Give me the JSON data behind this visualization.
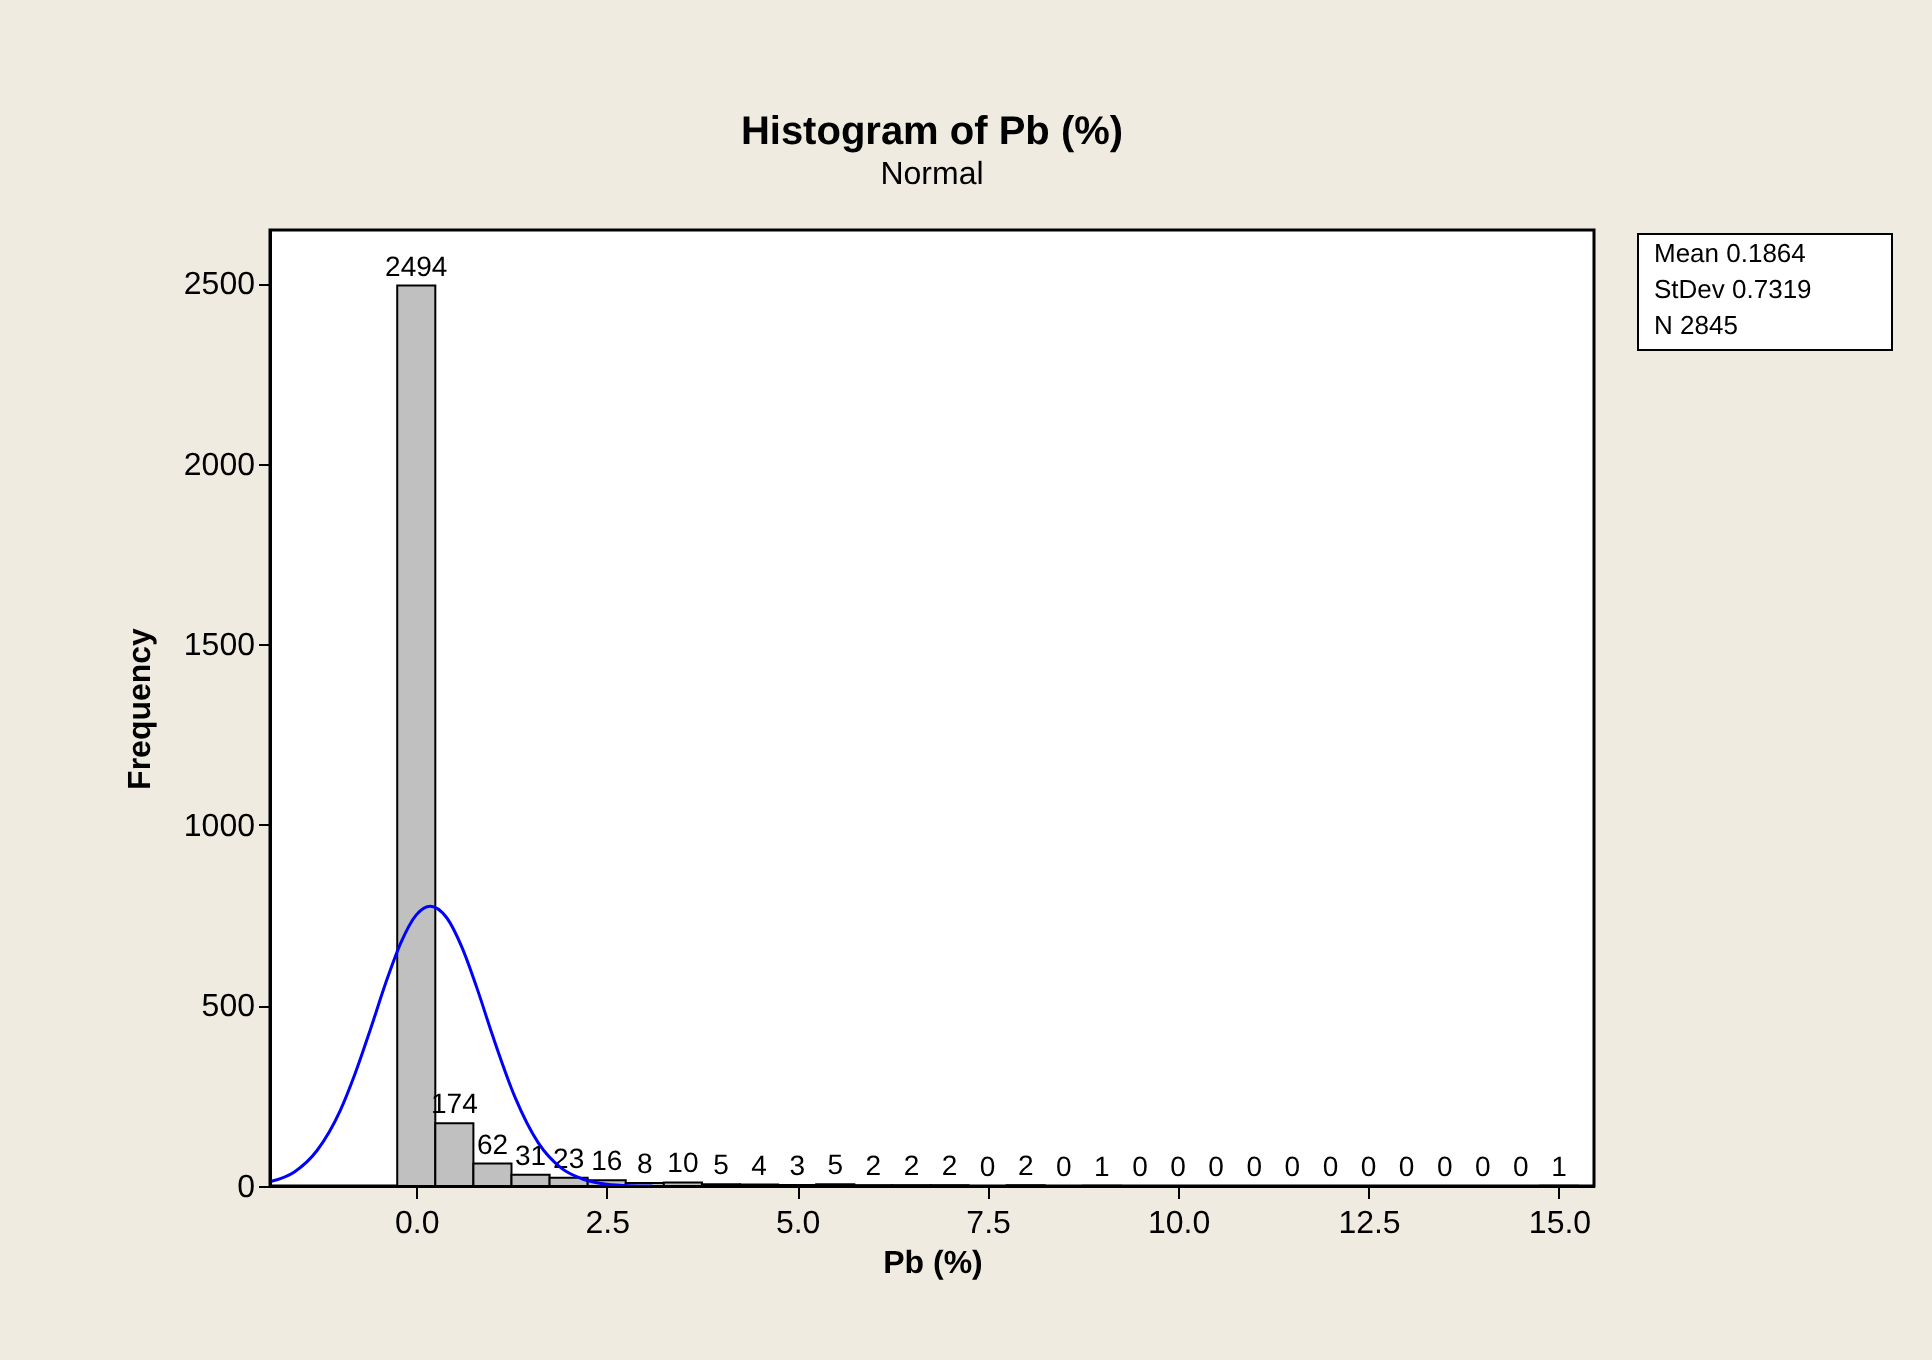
{
  "chart_data": {
    "type": "histogram",
    "title": "Histogram of Pb (%)",
    "subtitle": "Normal",
    "xlabel": "Pb (%)",
    "ylabel": "Frequency",
    "xlim": [
      -1.92,
      15.46
    ],
    "ylim": [
      0,
      2648
    ],
    "xticks": [
      {
        "value": 0,
        "label": "0.0"
      },
      {
        "value": 2.5,
        "label": "2.5"
      },
      {
        "value": 5,
        "label": "5.0"
      },
      {
        "value": 7.5,
        "label": "7.5"
      },
      {
        "value": 10,
        "label": "10.0"
      },
      {
        "value": 12.5,
        "label": "12.5"
      },
      {
        "value": 15,
        "label": "15.0"
      }
    ],
    "yticks": [
      0,
      500,
      1000,
      1500,
      2000,
      2500
    ],
    "grid": false,
    "annotations": [
      "Mean 0.1864",
      "StDev 0.7319",
      "N 2845"
    ],
    "series": [
      {
        "color": "#c0c0c0",
        "value_labels": [
          "2494",
          "174",
          "62",
          "31",
          "23",
          "16",
          "8",
          "10",
          "5",
          "4",
          "3",
          "5",
          "2",
          "2",
          "2",
          "0",
          "2",
          "0",
          "1",
          "0",
          "0",
          "0",
          "0",
          "0",
          "0",
          "0",
          "0",
          "0",
          "0",
          "0",
          "1"
        ],
        "bins": [
          -0.25,
          0.25,
          0.75,
          1.25,
          1.75,
          2.25,
          2.75,
          3.25,
          3.75,
          4.25,
          4.75,
          5.25,
          5.75,
          6.25,
          6.75,
          7.25,
          7.75,
          8.25,
          8.75,
          9.25,
          9.75,
          10.25,
          10.75,
          11.25,
          11.75,
          12.25,
          12.75,
          13.25,
          13.75,
          14.25,
          14.75,
          15.25
        ],
        "values": [
          2494,
          174,
          62,
          31,
          23,
          16,
          8,
          10,
          5,
          4,
          3,
          5,
          2,
          2,
          2,
          0,
          2,
          0,
          1,
          0,
          0,
          0,
          0,
          0,
          0,
          0,
          0,
          0,
          0,
          0,
          1
        ]
      },
      {
        "type": "line",
        "color": "#0000ff",
        "x": [
          -1.9,
          -1.6,
          -1.3,
          -1.0,
          -0.8,
          -0.6,
          -0.4,
          -0.2,
          0.0,
          0.1864,
          0.4,
          0.6,
          0.8,
          1.0,
          1.3,
          1.6,
          1.9,
          2.2,
          2.5,
          2.8,
          3.1
        ],
        "values": [
          13,
          39,
          99,
          208,
          313,
          435,
          563,
          675,
          751,
          775,
          743,
          661,
          546,
          418,
          244,
          120,
          50,
          18,
          5,
          1,
          0
        ]
      }
    ]
  }
}
